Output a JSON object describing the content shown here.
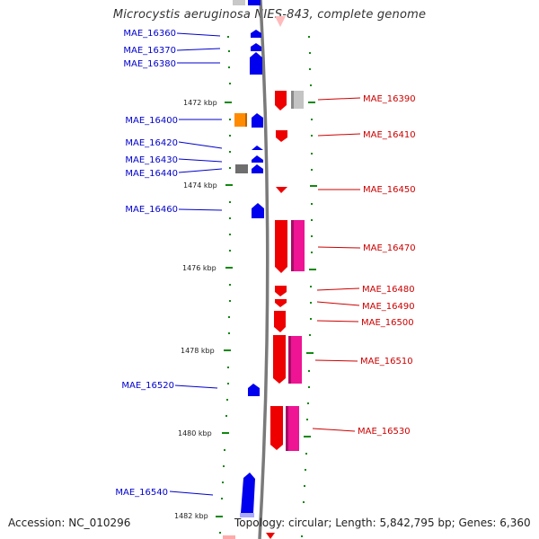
{
  "title": "Microcystis aeruginosa NIES-843, complete genome",
  "footer": {
    "accession": "Accession: NC_010296",
    "topology": "Topology: circular; Length: 5,842,795 bp; Genes: 6,360"
  },
  "colors": {
    "forward_strand": "#0000ee",
    "reverse_strand": "#ee0000",
    "pink_feature": "#ee1493",
    "orange_feature": "#ff8c00",
    "gray_feature": "#9e9e9e",
    "backbone": "#7a7a7a",
    "tick": "#118811"
  },
  "position_labels": [
    "1472 kbp",
    "1474 kbp",
    "1476 kbp",
    "1478 kbp",
    "1480 kbp",
    "1482 kbp"
  ],
  "genes_left": [
    "MAE_16360",
    "MAE_16370",
    "MAE_16380",
    "MAE_16400",
    "MAE_16420",
    "MAE_16430",
    "MAE_16440",
    "MAE_16460",
    "MAE_16520",
    "MAE_16540"
  ],
  "genes_right": [
    "MAE_16390",
    "MAE_16410",
    "MAE_16450",
    "MAE_16470",
    "MAE_16480",
    "MAE_16490",
    "MAE_16500",
    "MAE_16510",
    "MAE_16530"
  ]
}
